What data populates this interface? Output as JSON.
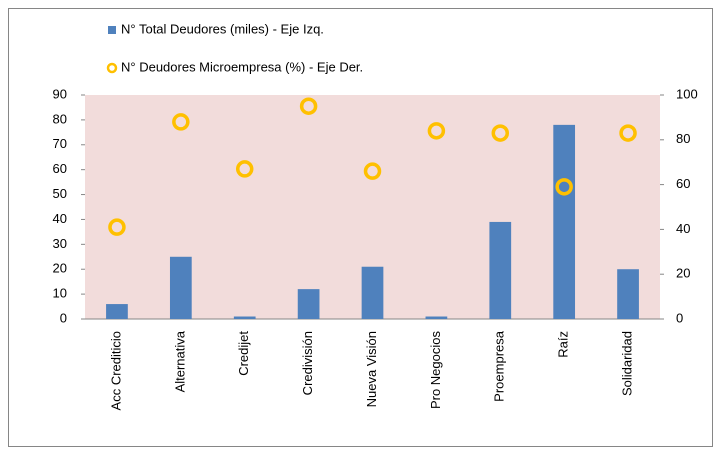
{
  "chart_data": {
    "type": "bar",
    "categories": [
      "Acc Crediticio",
      "Alternativa",
      "Credijet",
      "Credivisión",
      "Nueva Visión",
      "Pro Negocios",
      "Proempresa",
      "Raíz",
      "Solidaridad"
    ],
    "series": [
      {
        "name": "N° Total Deudores (miles) - Eje Izq.",
        "type": "bar",
        "color": "#4f81bd",
        "values": [
          6,
          25,
          1,
          12,
          21,
          1,
          39,
          78,
          20
        ]
      },
      {
        "name": "N° Deudores Microempresa (%) - Eje Der.",
        "type": "scatter",
        "axis": "y2",
        "color": "#ffc000",
        "values": [
          41,
          88,
          67,
          95,
          66,
          84,
          83,
          59,
          83
        ]
      }
    ],
    "ylim": [
      0,
      90
    ],
    "yticks": [
      0,
      10,
      20,
      30,
      40,
      50,
      60,
      70,
      80,
      90
    ],
    "y2lim": [
      0,
      100
    ],
    "y2ticks": [
      0,
      20,
      40,
      60,
      80,
      100
    ],
    "plot_background": "#f2dcdb",
    "legend": "top-left"
  }
}
